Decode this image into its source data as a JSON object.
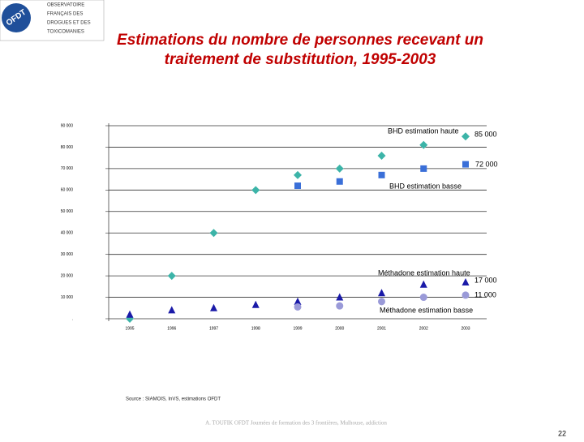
{
  "header": {
    "logo_text": "OFDT",
    "org_lines": [
      "OBSERVATOIRE",
      "FRANÇAIS DES",
      "DROGUES ET DES",
      "TOXICOMANIES"
    ]
  },
  "chart_data": {
    "type": "scatter",
    "title": "Estimations du nombre de personnes recevant un traitement de substitution, 1995-2003",
    "categories": [
      "1995",
      "1996",
      "1997",
      "1998",
      "1999",
      "2000",
      "2001",
      "2002",
      "2003"
    ],
    "ylim": [
      0,
      90000
    ],
    "yticks": [
      {
        "value": 0,
        "label": "."
      },
      {
        "value": 10000,
        "label": "10 000"
      },
      {
        "value": 20000,
        "label": "20 000"
      },
      {
        "value": 30000,
        "label": "30 000"
      },
      {
        "value": 40000,
        "label": "40 000"
      },
      {
        "value": 50000,
        "label": "50 000"
      },
      {
        "value": 60000,
        "label": "60 000"
      },
      {
        "value": 70000,
        "label": "70 000"
      },
      {
        "value": 80000,
        "label": "80 000"
      },
      {
        "value": 90000,
        "label": "90 000"
      }
    ],
    "grid": true,
    "series": [
      {
        "name": "BHD estimation haute",
        "color": "#3cb4a8",
        "marker": "diamond",
        "values": [
          0,
          20000,
          40000,
          60000,
          67000,
          70000,
          76000,
          81000,
          85000
        ],
        "value_labels": [
          null,
          null,
          null,
          null,
          null,
          null,
          null,
          null,
          "85 000"
        ]
      },
      {
        "name": "BHD estimation basse",
        "color": "#3a6fd8",
        "marker": "square",
        "values": [
          null,
          null,
          null,
          null,
          62000,
          64000,
          67000,
          70000,
          72000
        ],
        "value_labels": [
          null,
          null,
          null,
          null,
          null,
          null,
          null,
          null,
          "72 000"
        ]
      },
      {
        "name": "Méthadone estimation haute",
        "color": "#1a1aa8",
        "marker": "triangle",
        "values": [
          2000,
          4000,
          5000,
          6500,
          8000,
          10000,
          12000,
          16000,
          17000
        ],
        "value_labels": [
          null,
          null,
          null,
          null,
          null,
          null,
          null,
          null,
          "17 000"
        ]
      },
      {
        "name": "Méthadone estimation basse",
        "color": "#9a9ad8",
        "marker": "circle",
        "values": [
          null,
          null,
          null,
          null,
          5500,
          6000,
          8000,
          10000,
          11000
        ],
        "value_labels": [
          null,
          null,
          null,
          null,
          null,
          null,
          null,
          null,
          "11 000"
        ]
      }
    ],
    "source": "Source : SIAMOIS, InVS, estimations OFDT"
  },
  "footer": {
    "text": "A. TOUFIK OFDT Journées de formation des 3 frontières, Mulhouse, addiction",
    "page": "22"
  }
}
